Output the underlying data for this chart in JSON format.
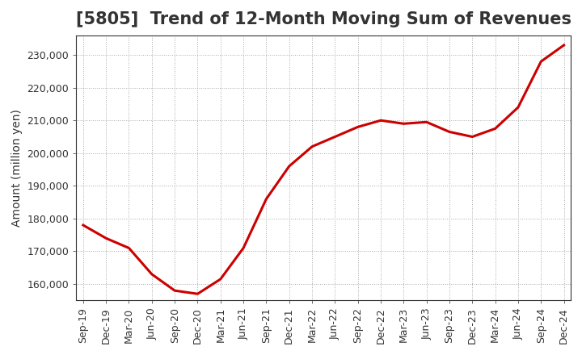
{
  "title": "[5805]  Trend of 12-Month Moving Sum of Revenues",
  "ylabel": "Amount (million yen)",
  "line_color": "#cc0000",
  "background_color": "#ffffff",
  "plot_bg_color": "#ffffff",
  "grid_color": "#aaaaaa",
  "x_labels": [
    "Sep-19",
    "Dec-19",
    "Mar-20",
    "Jun-20",
    "Sep-20",
    "Dec-20",
    "Mar-21",
    "Jun-21",
    "Sep-21",
    "Dec-21",
    "Mar-22",
    "Jun-22",
    "Sep-22",
    "Dec-22",
    "Mar-23",
    "Jun-23",
    "Sep-23",
    "Dec-23",
    "Mar-24",
    "Jun-24",
    "Sep-24",
    "Dec-24"
  ],
  "values": [
    178000,
    174000,
    171000,
    163000,
    158000,
    157000,
    161500,
    171000,
    186000,
    196000,
    202000,
    205000,
    208000,
    210000,
    209000,
    209500,
    206500,
    205000,
    207500,
    214000,
    228000,
    233000
  ],
  "ylim": [
    155000,
    236000
  ],
  "yticks": [
    160000,
    170000,
    180000,
    190000,
    200000,
    210000,
    220000,
    230000
  ],
  "title_fontsize": 15,
  "axis_fontsize": 10,
  "tick_fontsize": 9,
  "linewidth": 2.2
}
